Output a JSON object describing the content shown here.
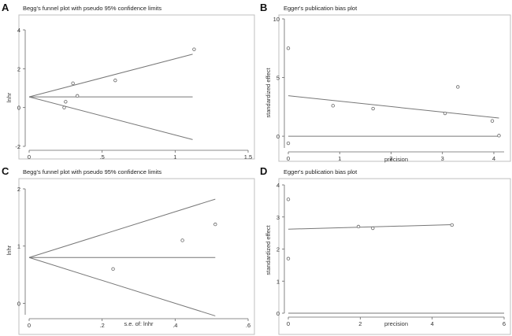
{
  "chart_data": [
    {
      "panel": "A",
      "type": "scatter",
      "title": "Begg's funnel plot with pseudo 95% confidence limits",
      "xlabel": "",
      "ylabel": "lnhr",
      "xlim": [
        0,
        1.5
      ],
      "ylim": [
        -2,
        4
      ],
      "xticks": [
        "0",
        ".5",
        "1",
        "1.5"
      ],
      "yticks": [
        "-2",
        "0",
        "2",
        "4"
      ],
      "points": [
        {
          "x": 0.24,
          "y": 0.0
        },
        {
          "x": 0.25,
          "y": 0.3
        },
        {
          "x": 0.3,
          "y": 1.25
        },
        {
          "x": 0.33,
          "y": 0.6
        },
        {
          "x": 0.59,
          "y": 1.4
        },
        {
          "x": 1.13,
          "y": 3.0
        }
      ],
      "lines": [
        {
          "x": [
            0,
            1.12
          ],
          "y": [
            0.55,
            0.55
          ]
        },
        {
          "x": [
            0,
            1.12
          ],
          "y": [
            0.55,
            2.75
          ]
        },
        {
          "x": [
            0,
            1.12
          ],
          "y": [
            0.55,
            -1.65
          ]
        }
      ]
    },
    {
      "panel": "B",
      "type": "scatter",
      "title": "Egger's publication bias plot",
      "xlabel": "precision",
      "ylabel": "standardized effect",
      "xlim": [
        0,
        4.2
      ],
      "ylim": [
        -1,
        10
      ],
      "xticks": [
        "0",
        "1",
        "2",
        "3",
        "4"
      ],
      "yticks": [
        "0",
        "5",
        "10"
      ],
      "points": [
        {
          "x": 0,
          "y": 7.5
        },
        {
          "x": 0,
          "y": -0.6
        },
        {
          "x": 0.87,
          "y": 2.6
        },
        {
          "x": 1.65,
          "y": 2.35
        },
        {
          "x": 3.05,
          "y": 1.95
        },
        {
          "x": 3.3,
          "y": 4.2
        },
        {
          "x": 3.97,
          "y": 1.3
        },
        {
          "x": 4.1,
          "y": 0.05
        }
      ],
      "lines": [
        {
          "x": [
            0,
            4.1
          ],
          "y": [
            3.45,
            1.55
          ]
        },
        {
          "x": [
            0,
            4.1
          ],
          "y": [
            0,
            0
          ]
        }
      ]
    },
    {
      "panel": "C",
      "type": "scatter",
      "title": "Begg's funnel plot with pseudo 95% confidence limits",
      "xlabel": "s.e. of: lnhr",
      "ylabel": "lnhr",
      "xlim": [
        0,
        0.6
      ],
      "ylim": [
        -0.2,
        2.0
      ],
      "xticks": [
        "0",
        ".2",
        ".4",
        ".6"
      ],
      "yticks": [
        "0",
        "1",
        "2"
      ],
      "points": [
        {
          "x": 0.23,
          "y": 0.6
        },
        {
          "x": 0.42,
          "y": 1.1
        },
        {
          "x": 0.51,
          "y": 1.38
        }
      ],
      "lines": [
        {
          "x": [
            0,
            0.51
          ],
          "y": [
            0.8,
            0.8
          ]
        },
        {
          "x": [
            0,
            0.51
          ],
          "y": [
            0.8,
            1.82
          ]
        },
        {
          "x": [
            0,
            0.51
          ],
          "y": [
            0.8,
            -0.22
          ]
        }
      ]
    },
    {
      "panel": "D",
      "type": "scatter",
      "title": "Egger's publication bias plot",
      "xlabel": "precision",
      "ylabel": "standardized effect",
      "xlim": [
        0,
        6
      ],
      "ylim": [
        0,
        4
      ],
      "xticks": [
        "0",
        "2",
        "4",
        "6"
      ],
      "yticks": [
        "0",
        "1",
        "2",
        "3",
        "4"
      ],
      "points": [
        {
          "x": 0,
          "y": 3.55
        },
        {
          "x": 0,
          "y": 1.7
        },
        {
          "x": 1.95,
          "y": 2.7
        },
        {
          "x": 2.35,
          "y": 2.65
        },
        {
          "x": 4.55,
          "y": 2.75
        }
      ],
      "lines": [
        {
          "x": [
            0,
            4.55
          ],
          "y": [
            2.62,
            2.76
          ]
        },
        {
          "x": [
            0,
            6
          ],
          "y": [
            0,
            0
          ]
        }
      ]
    }
  ]
}
